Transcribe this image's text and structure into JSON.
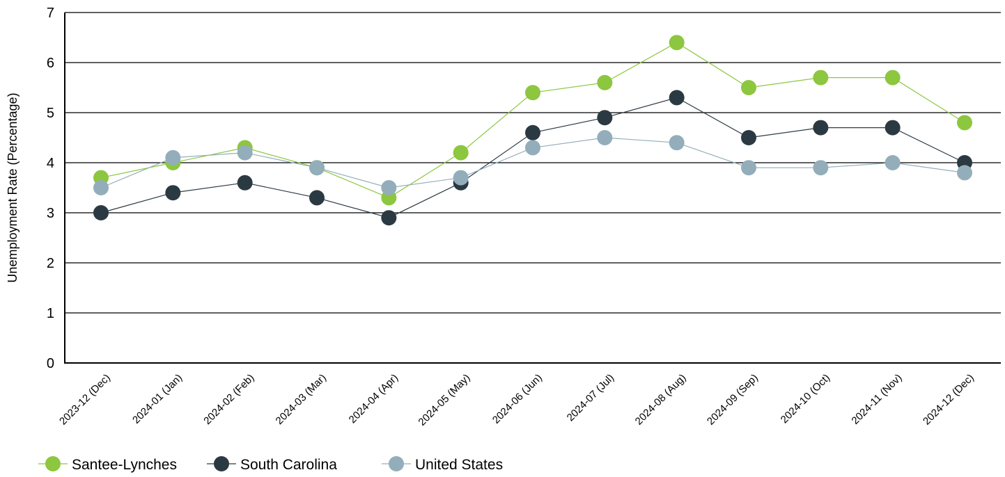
{
  "chart_data": {
    "type": "line",
    "title": "",
    "xlabel": "",
    "ylabel": "Unemployment Rate (Percentage)",
    "ylim": [
      0,
      7
    ],
    "yticks": [
      "0",
      "1",
      "2",
      "3",
      "4",
      "5",
      "6",
      "7"
    ],
    "grid": "horizontal",
    "legend_position": "bottom-left",
    "categories": [
      "2023-12 (Dec)",
      "2024-01 (Jan)",
      "2024-02 (Feb)",
      "2024-03 (Mar)",
      "2024-04 (Apr)",
      "2024-05 (May)",
      "2024-06 (Jun)",
      "2024-07 (Jul)",
      "2024-08 (Aug)",
      "2024-09 (Sep)",
      "2024-10 (Oct)",
      "2024-11 (Nov)",
      "2024-12 (Dec)"
    ],
    "series": [
      {
        "name": "Santee-Lynches",
        "color": "#8dc63f",
        "values": [
          3.7,
          4.0,
          4.3,
          3.9,
          3.3,
          4.2,
          5.4,
          5.6,
          6.4,
          5.5,
          5.7,
          5.7,
          4.8
        ]
      },
      {
        "name": "South Carolina",
        "color": "#2b3a42",
        "values": [
          3.0,
          3.4,
          3.6,
          3.3,
          2.9,
          3.6,
          4.6,
          4.9,
          5.3,
          4.5,
          4.7,
          4.7,
          4.0
        ]
      },
      {
        "name": "United States",
        "color": "#93aeba",
        "values": [
          3.5,
          4.1,
          4.2,
          3.9,
          3.5,
          3.7,
          4.3,
          4.5,
          4.4,
          3.9,
          3.9,
          4.0,
          3.8
        ]
      }
    ]
  }
}
